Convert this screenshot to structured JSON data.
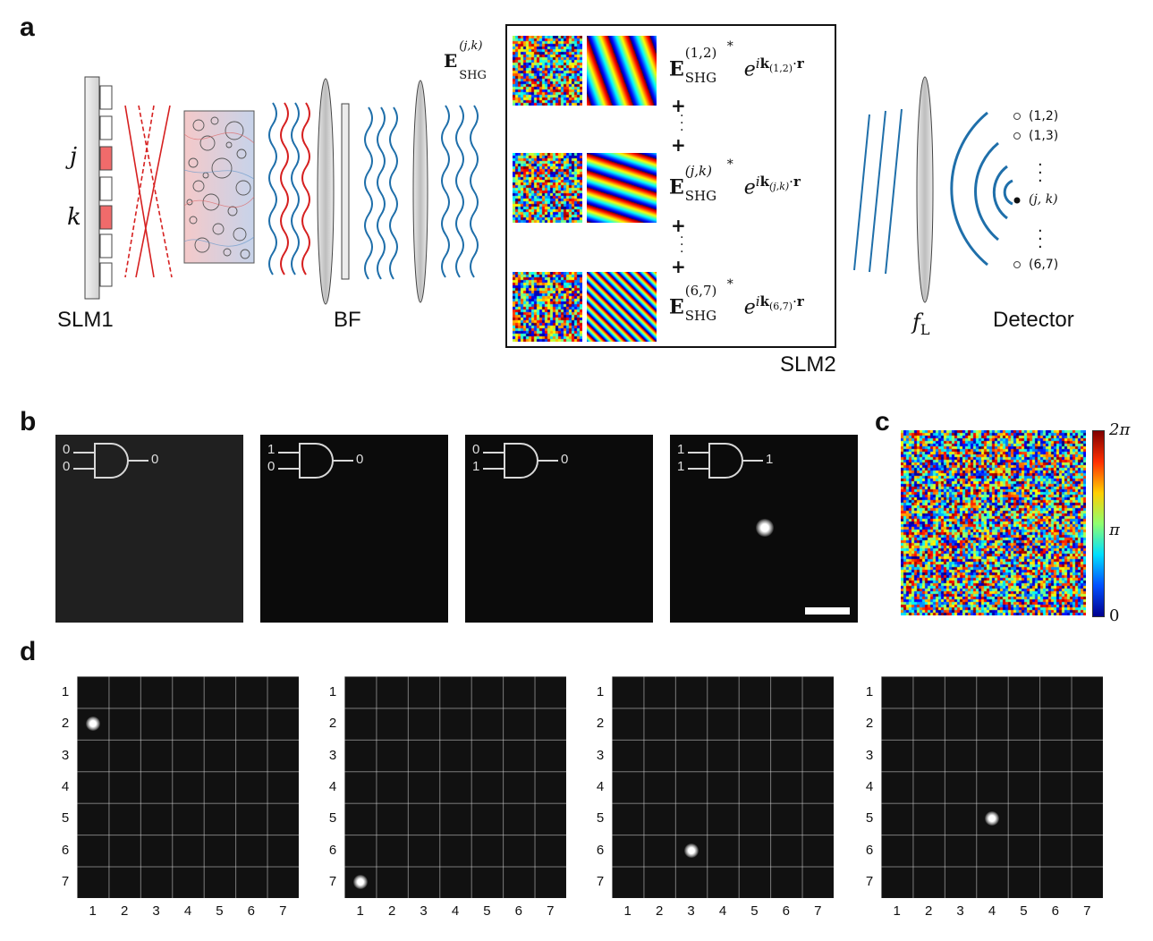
{
  "panels": {
    "a": "a",
    "b": "b",
    "c": "c",
    "d": "d"
  },
  "panel_a": {
    "slm1_label": "SLM1",
    "bf_label": "BF",
    "slm2_label": "SLM2",
    "lens_label_main": "f",
    "lens_label_sub": "L",
    "detector_label": "Detector",
    "j_label": "j",
    "k_label": "k",
    "eshg_label": "E",
    "eshg_sub": "SHG",
    "eshg_sup": "(j,k)",
    "terms": [
      {
        "sup": "(1,2)",
        "ksub": "(1,2)"
      },
      {
        "sup": "(j,k)",
        "ksub": "(j,k)"
      },
      {
        "sup": "(6,7)",
        "ksub": "(6,7)"
      }
    ],
    "plus": "+",
    "detector_positions": [
      "(1,2)",
      "(1,3)",
      "(j, k)",
      "(6,7)"
    ]
  },
  "panel_b": {
    "gates": [
      {
        "in1": "0",
        "in2": "0",
        "out": "0"
      },
      {
        "in1": "1",
        "in2": "0",
        "out": "0"
      },
      {
        "in1": "0",
        "in2": "1",
        "out": "0"
      },
      {
        "in1": "1",
        "in2": "1",
        "out": "1"
      }
    ]
  },
  "panel_c": {
    "colorbar_labels": {
      "top": "2π",
      "mid": "π",
      "bottom": "0"
    },
    "colors": [
      "#00008f",
      "#0050ff",
      "#00dfff",
      "#8fff70",
      "#ffcf00",
      "#ff3000",
      "#800000"
    ]
  },
  "panel_d": {
    "tick_labels": [
      "1",
      "2",
      "3",
      "4",
      "5",
      "6",
      "7"
    ],
    "spots": [
      {
        "col": 1,
        "row": 2
      },
      {
        "col": 1,
        "row": 7
      },
      {
        "col": 3,
        "row": 6
      },
      {
        "col": 4,
        "row": 5
      }
    ]
  }
}
